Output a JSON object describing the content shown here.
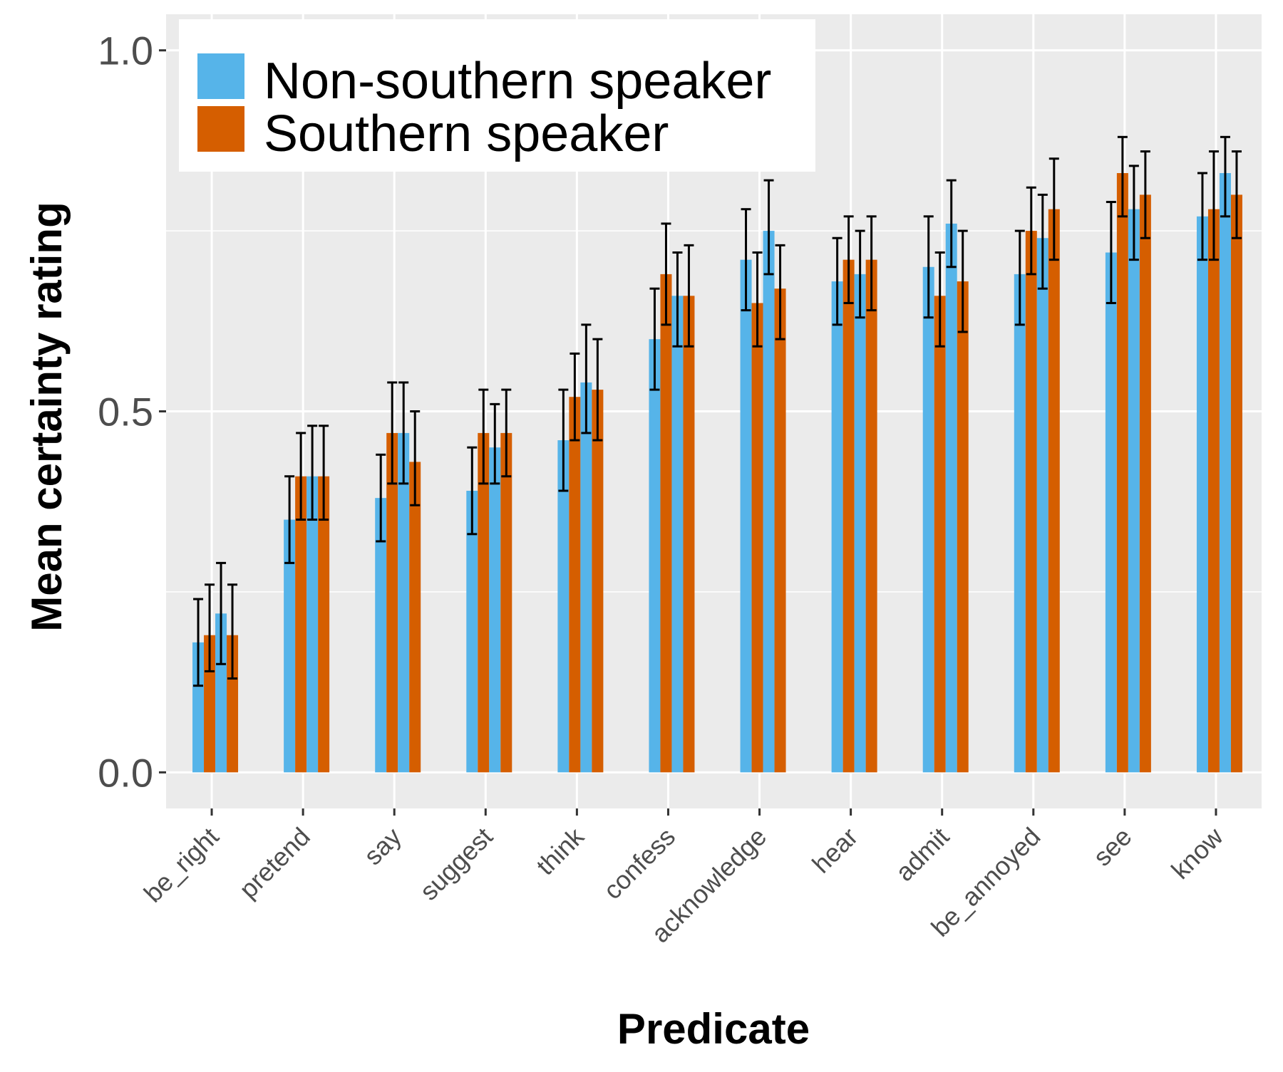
{
  "chart_data": {
    "type": "bar",
    "xlabel": "Predicate",
    "ylabel": "Mean certainty rating",
    "ylim": [
      -0.05,
      1.05
    ],
    "yticks": [
      "0.0",
      "0.5",
      "1.0"
    ],
    "grid": true,
    "legend_position": "top-left",
    "categories": [
      "be_right",
      "pretend",
      "say",
      "suggest",
      "think",
      "confess",
      "acknowledge",
      "hear",
      "admit",
      "be_annoyed",
      "see",
      "know"
    ],
    "series": [
      {
        "name": "Non-southern speaker",
        "color": "#56B4E9",
        "values": [
          [
            0.18,
            0.22
          ],
          [
            0.35,
            0.41
          ],
          [
            0.38,
            0.47
          ],
          [
            0.39,
            0.45
          ],
          [
            0.46,
            0.54
          ],
          [
            0.6,
            0.66
          ],
          [
            0.71,
            0.75
          ],
          [
            0.68,
            0.69
          ],
          [
            0.7,
            0.76
          ],
          [
            0.69,
            0.74
          ],
          [
            0.72,
            0.78
          ],
          [
            0.77,
            0.83
          ]
        ],
        "errors_low": [
          [
            0.12,
            0.15
          ],
          [
            0.29,
            0.35
          ],
          [
            0.32,
            0.4
          ],
          [
            0.33,
            0.4
          ],
          [
            0.39,
            0.47
          ],
          [
            0.53,
            0.59
          ],
          [
            0.64,
            0.69
          ],
          [
            0.62,
            0.63
          ],
          [
            0.63,
            0.7
          ],
          [
            0.62,
            0.67
          ],
          [
            0.65,
            0.71
          ],
          [
            0.71,
            0.77
          ]
        ],
        "errors_high": [
          [
            0.24,
            0.29
          ],
          [
            0.41,
            0.48
          ],
          [
            0.44,
            0.54
          ],
          [
            0.45,
            0.51
          ],
          [
            0.53,
            0.62
          ],
          [
            0.67,
            0.72
          ],
          [
            0.78,
            0.82
          ],
          [
            0.74,
            0.75
          ],
          [
            0.77,
            0.82
          ],
          [
            0.75,
            0.8
          ],
          [
            0.79,
            0.84
          ],
          [
            0.83,
            0.88
          ]
        ]
      },
      {
        "name": "Southern speaker",
        "color": "#D55E00",
        "values": [
          [
            0.19,
            0.19
          ],
          [
            0.41,
            0.41
          ],
          [
            0.47,
            0.43
          ],
          [
            0.47,
            0.47
          ],
          [
            0.52,
            0.53
          ],
          [
            0.69,
            0.66
          ],
          [
            0.65,
            0.67
          ],
          [
            0.71,
            0.71
          ],
          [
            0.66,
            0.68
          ],
          [
            0.75,
            0.78
          ],
          [
            0.83,
            0.8
          ],
          [
            0.78,
            0.8
          ]
        ],
        "errors_low": [
          [
            0.14,
            0.13
          ],
          [
            0.35,
            0.35
          ],
          [
            0.4,
            0.37
          ],
          [
            0.4,
            0.41
          ],
          [
            0.46,
            0.46
          ],
          [
            0.62,
            0.59
          ],
          [
            0.59,
            0.6
          ],
          [
            0.65,
            0.64
          ],
          [
            0.59,
            0.61
          ],
          [
            0.69,
            0.71
          ],
          [
            0.77,
            0.74
          ],
          [
            0.71,
            0.74
          ]
        ],
        "errors_high": [
          [
            0.26,
            0.26
          ],
          [
            0.47,
            0.48
          ],
          [
            0.54,
            0.5
          ],
          [
            0.53,
            0.53
          ],
          [
            0.58,
            0.6
          ],
          [
            0.76,
            0.73
          ],
          [
            0.72,
            0.73
          ],
          [
            0.77,
            0.77
          ],
          [
            0.72,
            0.75
          ],
          [
            0.81,
            0.85
          ],
          [
            0.88,
            0.86
          ],
          [
            0.86,
            0.86
          ]
        ]
      }
    ]
  }
}
